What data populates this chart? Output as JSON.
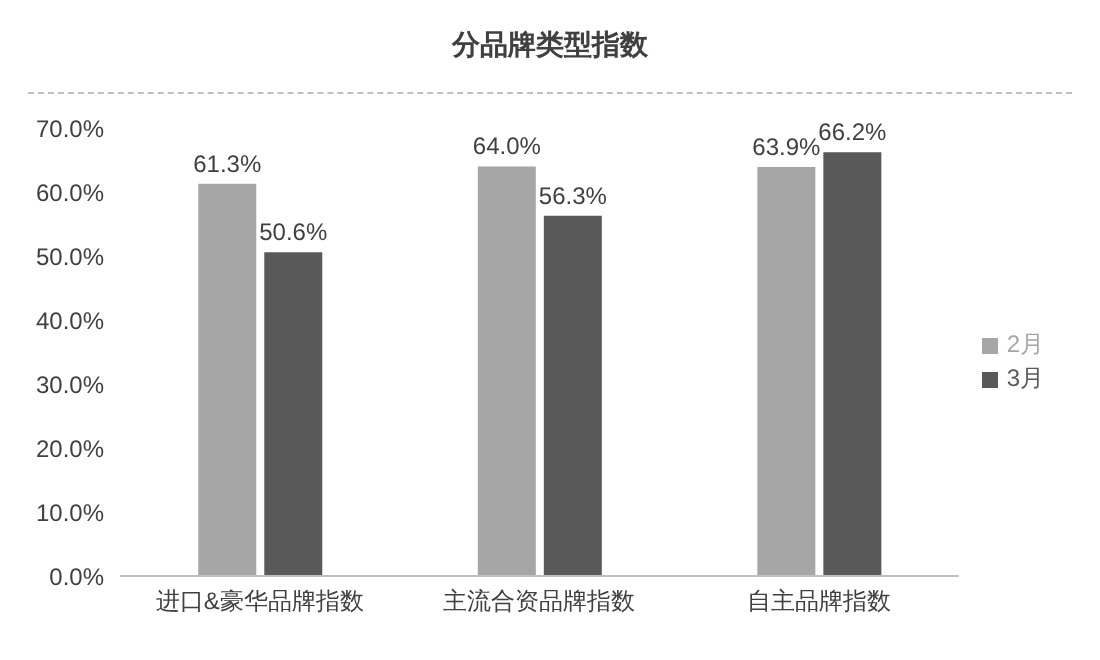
{
  "chart_data": {
    "type": "bar",
    "title": "分品牌类型指数",
    "categories": [
      "进口&豪华品牌指数",
      "主流合资品牌指数",
      "自主品牌指数"
    ],
    "series": [
      {
        "name": "2月",
        "color": "#a6a6a6",
        "values": [
          61.3,
          64.0,
          63.9
        ],
        "value_labels": [
          "61.3%",
          "64.0%",
          "63.9%"
        ]
      },
      {
        "name": "3月",
        "color": "#595959",
        "values": [
          50.6,
          56.3,
          66.2
        ],
        "value_labels": [
          "50.6%",
          "56.3%",
          "66.2%"
        ]
      }
    ],
    "ylim": [
      0,
      70
    ],
    "yticks": [
      {
        "value": 0,
        "label": "0.0%"
      },
      {
        "value": 10,
        "label": "10.0%"
      },
      {
        "value": 20,
        "label": "20.0%"
      },
      {
        "value": 30,
        "label": "30.0%"
      },
      {
        "value": 40,
        "label": "40.0%"
      },
      {
        "value": 50,
        "label": "50.0%"
      },
      {
        "value": 60,
        "label": "60.0%"
      },
      {
        "value": 70,
        "label": "70.0%"
      }
    ],
    "grid": false,
    "legend": "right"
  }
}
